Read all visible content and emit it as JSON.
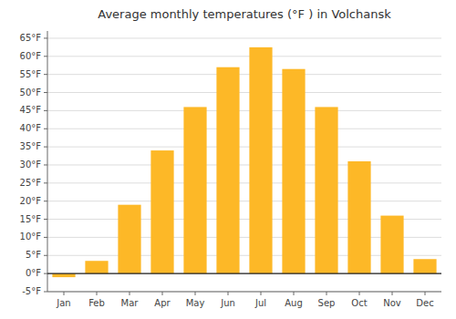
{
  "chart_data": {
    "type": "bar",
    "title": "Average monthly temperatures (°F ) in Volchansk",
    "categories": [
      "Jan",
      "Feb",
      "Mar",
      "Apr",
      "May",
      "Jun",
      "Jul",
      "Aug",
      "Sep",
      "Oct",
      "Nov",
      "Dec"
    ],
    "values": [
      -1,
      3.5,
      19,
      34,
      46,
      57,
      62.5,
      56.5,
      46,
      31,
      16,
      4
    ],
    "color": "#FDB827",
    "ylim": [
      -5,
      67
    ],
    "yticks": [
      {
        "value": -5,
        "label": "-5°F"
      },
      {
        "value": 0,
        "label": "0°F"
      },
      {
        "value": 5,
        "label": "5°F"
      },
      {
        "value": 10,
        "label": "10°F"
      },
      {
        "value": 15,
        "label": "15°F"
      },
      {
        "value": 20,
        "label": "20°F"
      },
      {
        "value": 25,
        "label": "25°F"
      },
      {
        "value": 30,
        "label": "30°F"
      },
      {
        "value": 35,
        "label": "35°F"
      },
      {
        "value": 40,
        "label": "40°F"
      },
      {
        "value": 45,
        "label": "45°F"
      },
      {
        "value": 50,
        "label": "50°F"
      },
      {
        "value": 55,
        "label": "55°F"
      },
      {
        "value": 60,
        "label": "60°F"
      },
      {
        "value": 65,
        "label": "65°F"
      }
    ],
    "grid": true
  }
}
